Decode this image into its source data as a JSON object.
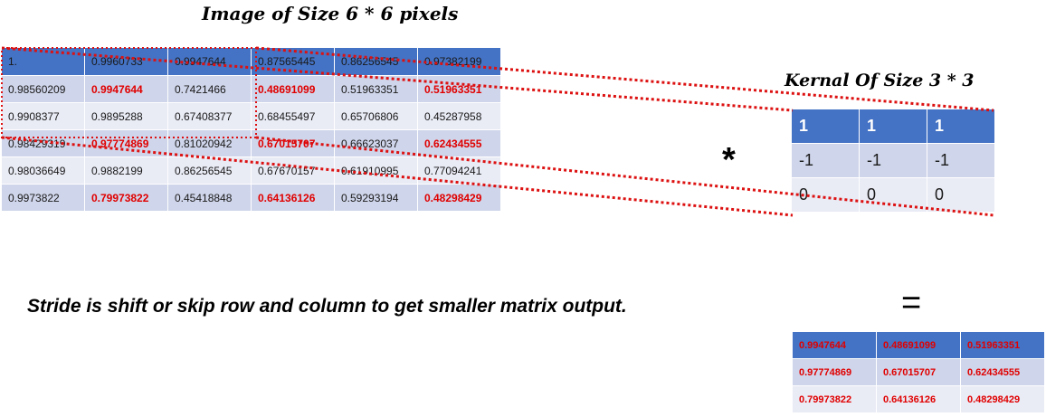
{
  "image_title": "Image of Size 6 * 6 pixels",
  "kernel_title": "Kernal Of Size 3  * 3",
  "operator_convolve": "*",
  "operator_equals": "=",
  "stride_text": "Stride is shift or skip row and column to get smaller matrix output.",
  "image_matrix": [
    [
      {
        "v": "1.",
        "red": false
      },
      {
        "v": "0.9960733",
        "red": false
      },
      {
        "v": "0.9947644",
        "red": false
      },
      {
        "v": "0.87565445",
        "red": false
      },
      {
        "v": "0.86256545",
        "red": false
      },
      {
        "v": "0.97382199",
        "red": false
      }
    ],
    [
      {
        "v": "0.98560209",
        "red": false
      },
      {
        "v": "0.9947644",
        "red": true
      },
      {
        "v": "0.7421466",
        "red": false
      },
      {
        "v": "0.48691099",
        "red": true
      },
      {
        "v": "0.51963351",
        "red": false
      },
      {
        "v": "0.51963351",
        "red": true
      }
    ],
    [
      {
        "v": "0.9908377",
        "red": false
      },
      {
        "v": "0.9895288",
        "red": false
      },
      {
        "v": "0.67408377",
        "red": false
      },
      {
        "v": "0.68455497",
        "red": false
      },
      {
        "v": "0.65706806",
        "red": false
      },
      {
        "v": "0.45287958",
        "red": false
      }
    ],
    [
      {
        "v": "0.98429319",
        "red": false
      },
      {
        "v": "0.97774869",
        "red": true
      },
      {
        "v": "0.81020942",
        "red": false
      },
      {
        "v": "0.67015707",
        "red": true
      },
      {
        "v": "0.66623037",
        "red": false
      },
      {
        "v": "0.62434555",
        "red": true
      }
    ],
    [
      {
        "v": "0.98036649",
        "red": false
      },
      {
        "v": "0.9882199",
        "red": false
      },
      {
        "v": "0.86256545",
        "red": false
      },
      {
        "v": "0.67670157",
        "red": false
      },
      {
        "v": "0.61910995",
        "red": false
      },
      {
        "v": "0.77094241",
        "red": false
      }
    ],
    [
      {
        "v": "0.9973822",
        "red": false
      },
      {
        "v": "0.79973822",
        "red": true
      },
      {
        "v": "0.45418848",
        "red": false
      },
      {
        "v": "0.64136126",
        "red": true
      },
      {
        "v": "0.59293194",
        "red": false
      },
      {
        "v": "0.48298429",
        "red": true
      }
    ]
  ],
  "kernel_matrix": [
    [
      "1",
      "1",
      "1"
    ],
    [
      "-1",
      "-1",
      "-1"
    ],
    [
      "0",
      "0",
      "0"
    ]
  ],
  "output_matrix": [
    [
      "0.9947644",
      "0.48691099",
      "0.51963351"
    ],
    [
      "0.97774869",
      "0.67015707",
      "0.62434555"
    ],
    [
      "0.79973822",
      "0.64136126",
      "0.48298429"
    ]
  ],
  "colors": {
    "header_blue": "#4472c4",
    "band_dark": "#cfd5ea",
    "band_light": "#e9ebf5",
    "highlight_red": "#e00000",
    "dotted_red": "#dd1111"
  }
}
